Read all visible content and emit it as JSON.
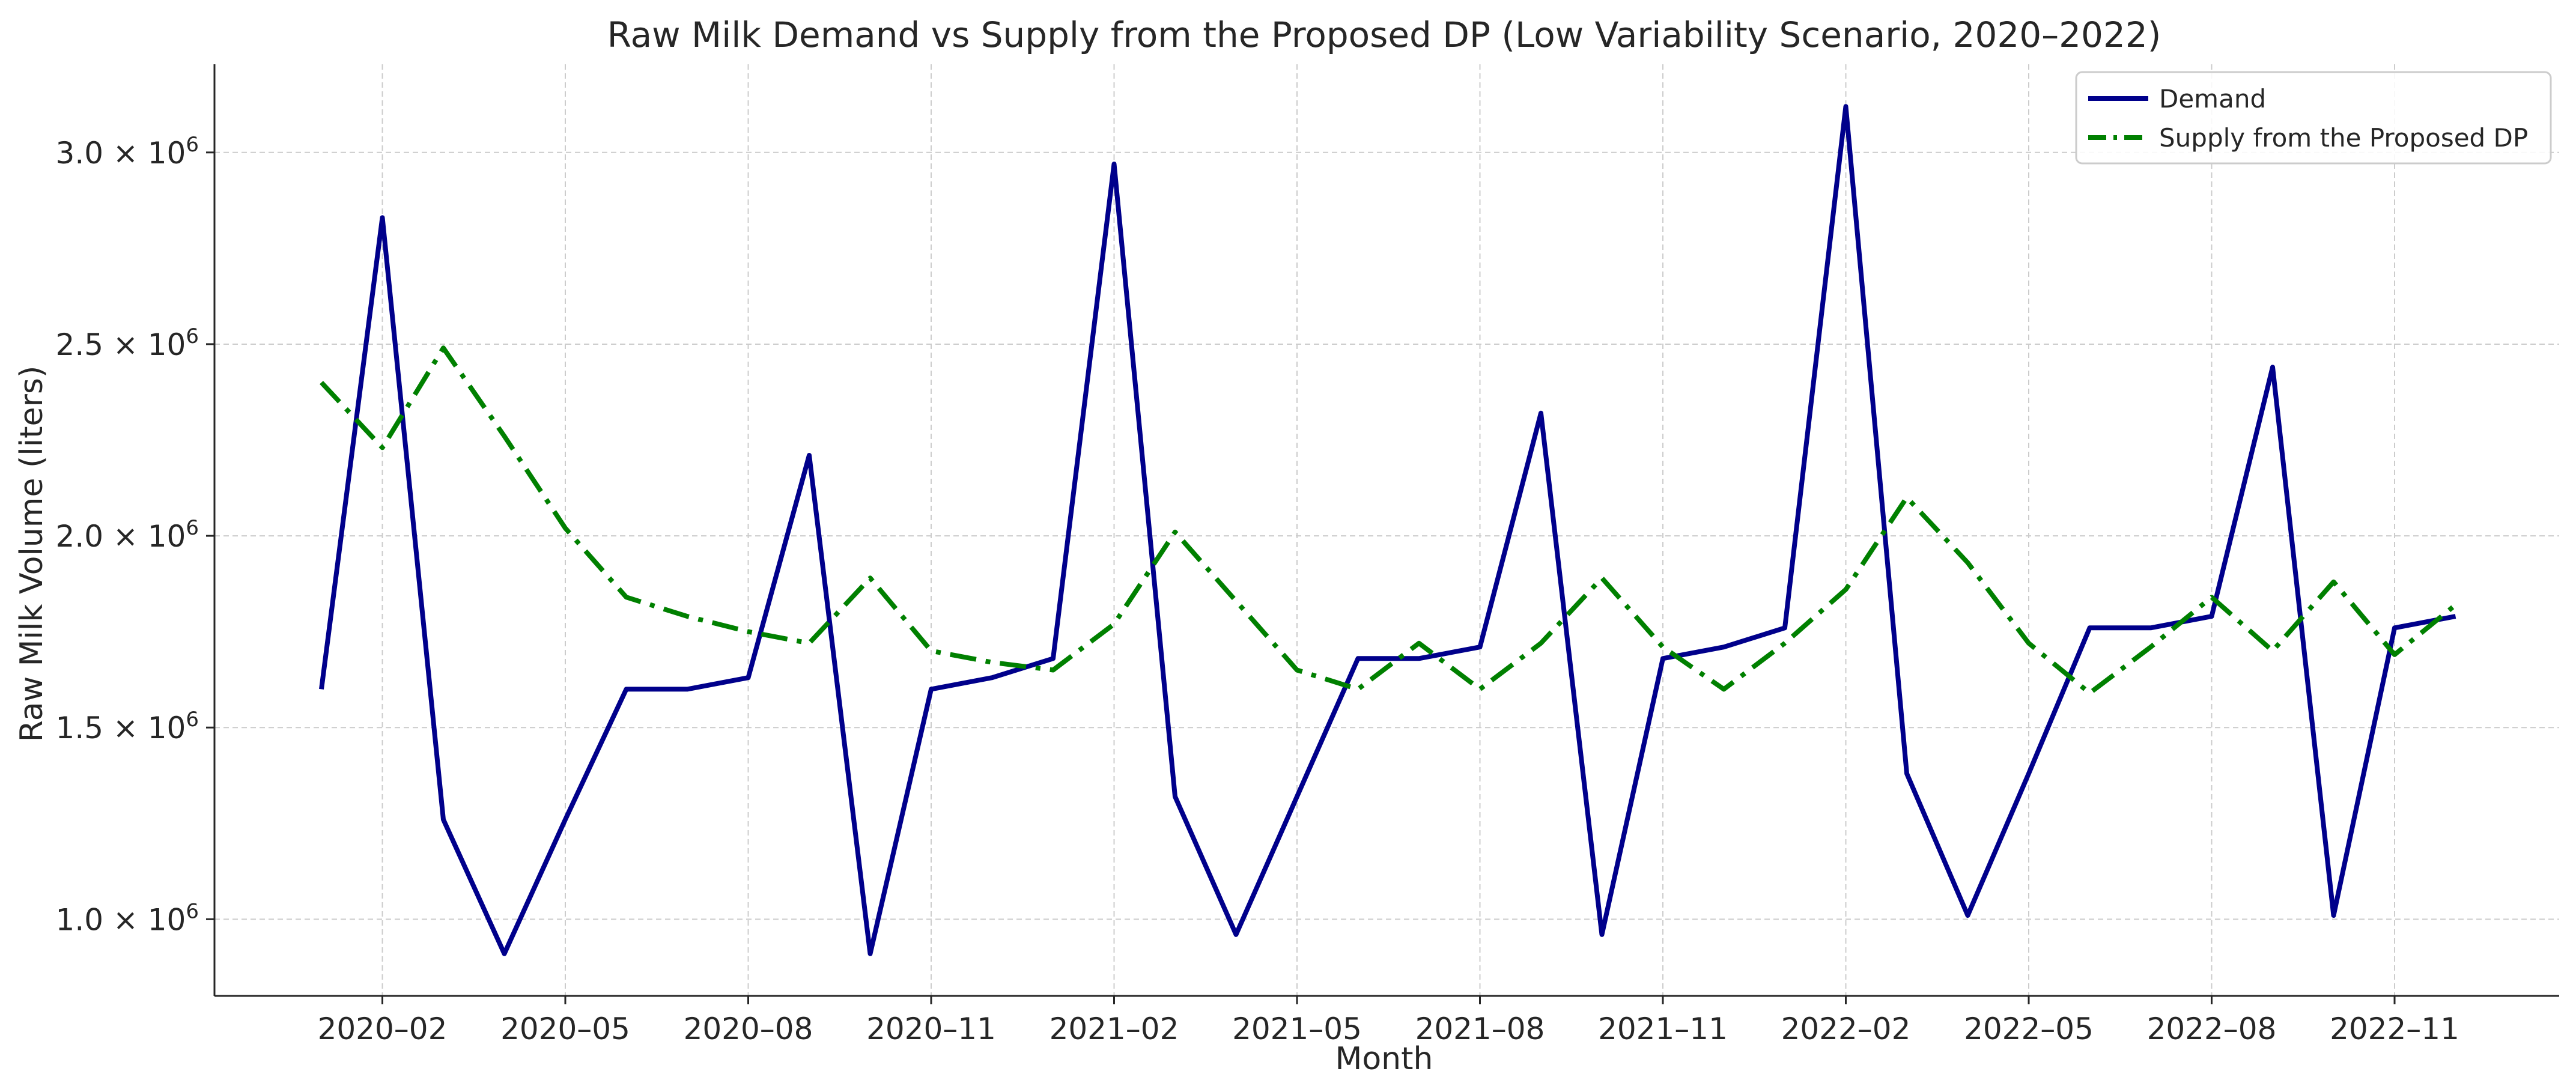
{
  "chart_data": {
    "type": "line",
    "title": "Raw Milk Demand vs Supply from the Proposed DP (Low Variability Scenario, 2020–2022)",
    "xlabel": "Month",
    "ylabel": "Raw Milk Volume (liters)",
    "ylim": [
      800000,
      3230000
    ],
    "grid": true,
    "legend_position": "top-right",
    "x": [
      "2020-01",
      "2020-02",
      "2020-03",
      "2020-04",
      "2020-05",
      "2020-06",
      "2020-07",
      "2020-08",
      "2020-09",
      "2020-10",
      "2020-11",
      "2020-12",
      "2021-01",
      "2021-02",
      "2021-03",
      "2021-04",
      "2021-05",
      "2021-06",
      "2021-07",
      "2021-08",
      "2021-09",
      "2021-10",
      "2021-11",
      "2021-12",
      "2022-01",
      "2022-02",
      "2022-03",
      "2022-04",
      "2022-05",
      "2022-06",
      "2022-07",
      "2022-08",
      "2022-09",
      "2022-10",
      "2022-11",
      "2022-12"
    ],
    "x_ticks": [
      {
        "month": "2020-02",
        "label": "2020–02"
      },
      {
        "month": "2020-05",
        "label": "2020–05"
      },
      {
        "month": "2020-08",
        "label": "2020–08"
      },
      {
        "month": "2020-11",
        "label": "2020–11"
      },
      {
        "month": "2021-02",
        "label": "2021–02"
      },
      {
        "month": "2021-05",
        "label": "2021–05"
      },
      {
        "month": "2021-08",
        "label": "2021–08"
      },
      {
        "month": "2021-11",
        "label": "2021–11"
      },
      {
        "month": "2022-02",
        "label": "2022–02"
      },
      {
        "month": "2022-05",
        "label": "2022–05"
      },
      {
        "month": "2022-08",
        "label": "2022–08"
      },
      {
        "month": "2022-11",
        "label": "2022–11"
      }
    ],
    "y_ticks": [
      {
        "value": 1000000,
        "mantissa": "1.0 × 10",
        "exp": "6"
      },
      {
        "value": 1500000,
        "mantissa": "1.5 × 10",
        "exp": "6"
      },
      {
        "value": 2000000,
        "mantissa": "2.0 × 10",
        "exp": "6"
      },
      {
        "value": 2500000,
        "mantissa": "2.5 × 10",
        "exp": "6"
      },
      {
        "value": 3000000,
        "mantissa": "3.0 × 10",
        "exp": "6"
      }
    ],
    "series": [
      {
        "name": "Demand",
        "color": "#00008b",
        "style": "solid",
        "values": [
          1600000,
          2830000,
          1260000,
          910000,
          1260000,
          1600000,
          1600000,
          1630000,
          2210000,
          910000,
          1600000,
          1630000,
          1680000,
          2970000,
          1320000,
          960000,
          1320000,
          1680000,
          1680000,
          1710000,
          2320000,
          960000,
          1680000,
          1710000,
          1760000,
          3120000,
          1380000,
          1010000,
          1380000,
          1760000,
          1760000,
          1790000,
          2440000,
          1010000,
          1760000,
          1790000
        ]
      },
      {
        "name": "Supply from the Proposed DP",
        "color": "#008000",
        "style": "dashdot",
        "values": [
          2400000,
          2230000,
          2490000,
          2260000,
          2020000,
          1840000,
          1790000,
          1750000,
          1720000,
          1890000,
          1700000,
          1670000,
          1650000,
          1770000,
          2010000,
          1830000,
          1650000,
          1600000,
          1720000,
          1600000,
          1720000,
          1890000,
          1710000,
          1600000,
          1720000,
          1860000,
          2100000,
          1930000,
          1720000,
          1590000,
          1710000,
          1840000,
          1700000,
          1880000,
          1690000,
          1820000
        ]
      }
    ]
  }
}
